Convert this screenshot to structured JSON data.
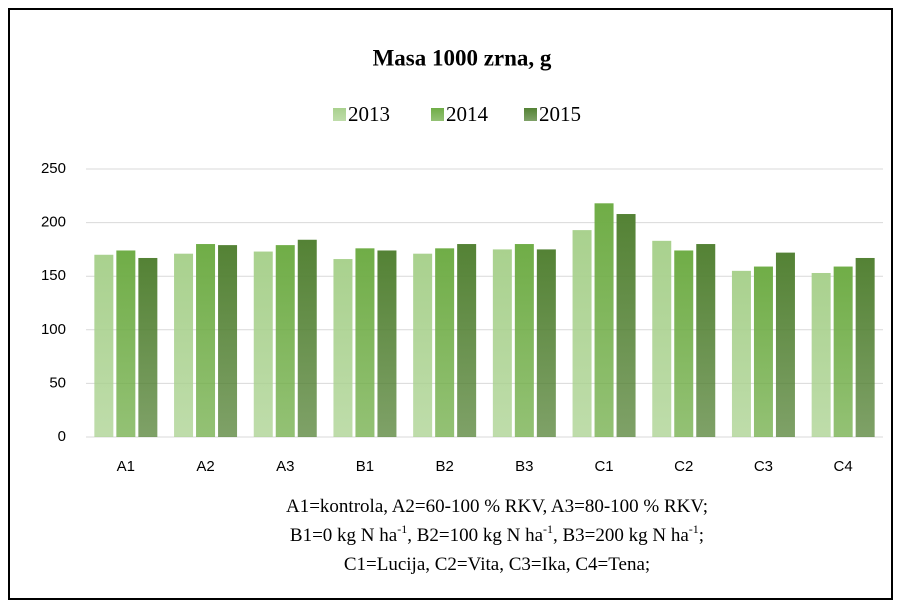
{
  "chart_data": {
    "type": "bar",
    "title": "Masa 1000 zrna, g",
    "categories": [
      "A1",
      "A2",
      "A3",
      "B1",
      "B2",
      "B3",
      "C1",
      "C2",
      "C3",
      "C4"
    ],
    "series": [
      {
        "name": "2013",
        "color": "#a9d18e",
        "values": [
          170,
          171,
          173,
          166,
          171,
          175,
          193,
          183,
          155,
          153
        ]
      },
      {
        "name": "2014",
        "color": "#70ad47",
        "values": [
          174,
          180,
          179,
          176,
          176,
          180,
          218,
          174,
          159,
          159
        ]
      },
      {
        "name": "2015",
        "color": "#548235",
        "values": [
          167,
          179,
          184,
          174,
          180,
          175,
          208,
          180,
          172,
          167
        ]
      }
    ],
    "ylim": [
      0,
      250
    ],
    "yticks": [
      0,
      50,
      100,
      150,
      200,
      250
    ],
    "grid": true,
    "legend": "top",
    "footnote": [
      [
        "A1=kontrola, A2=60-100 % RKV, A3=80-100 % RKV;"
      ],
      [
        "B1=0 kg N ha",
        "-1",
        ", B2=100 kg N ha",
        "-1",
        ", B3=200 kg N ha",
        "-1",
        ";"
      ],
      [
        "C1=Lucija, C2=Vita, C3=Ika, C4=Tena;"
      ]
    ]
  }
}
